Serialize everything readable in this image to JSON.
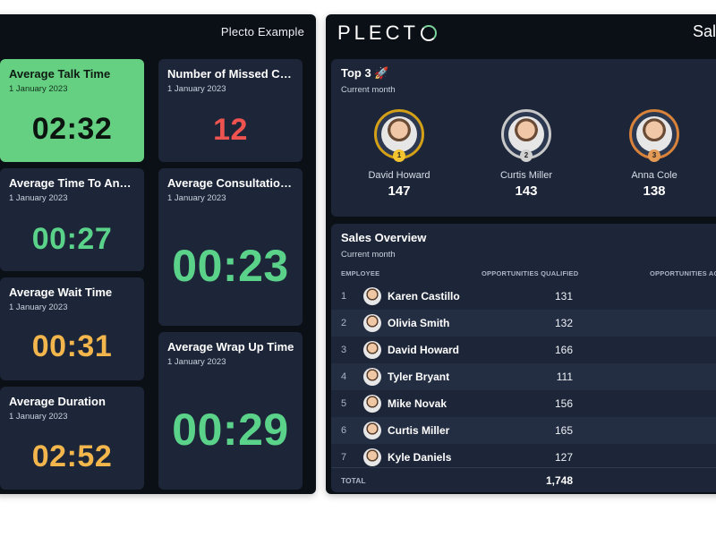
{
  "left_screen": {
    "title": "Plecto Example",
    "tiles": [
      {
        "title": "Average Talk Time",
        "date": "1 January 2023",
        "value": "02:32"
      },
      {
        "title": "Number of Missed Calls",
        "date": "1 January 2023",
        "value": "12"
      },
      {
        "title": "Average Time To Answer",
        "date": "1 January 2023",
        "value": "00:27"
      },
      {
        "title": "Average Consultation ...",
        "date": "1 January 2023",
        "value": "00:23"
      },
      {
        "title": "Average Wait Time",
        "date": "1 January 2023",
        "value": "00:31"
      },
      {
        "title": "Average Wrap Up Time",
        "date": "1 January 2023",
        "value": "00:29"
      },
      {
        "title": "Average Duration",
        "date": "1 January 2023",
        "value": "02:52"
      }
    ],
    "colors": {
      "green": "#5bd28a",
      "orange": "#f2b64c",
      "red": "#ef5350",
      "highlight_bg": "#65cf82"
    }
  },
  "right_screen": {
    "logo": "PLECT",
    "title": "Sal",
    "top3": {
      "title": "Top 3 🚀",
      "subtitle": "Current month",
      "people": [
        {
          "name": "David Howard",
          "score": "147",
          "rank": "1"
        },
        {
          "name": "Curtis Miller",
          "score": "143",
          "rank": "2"
        },
        {
          "name": "Anna Cole",
          "score": "138",
          "rank": "3"
        }
      ]
    },
    "sales_overview": {
      "title": "Sales Overview",
      "subtitle": "Current month",
      "columns": [
        "EMPLOYEE",
        "OPPORTUNITIES QUALIFIED",
        "OPPORTUNITIES AC"
      ],
      "rows": [
        {
          "rank": "1",
          "name": "Karen Castillo",
          "qualified": "131"
        },
        {
          "rank": "2",
          "name": "Olivia Smith",
          "qualified": "132"
        },
        {
          "rank": "3",
          "name": "David Howard",
          "qualified": "166"
        },
        {
          "rank": "4",
          "name": "Tyler Bryant",
          "qualified": "111"
        },
        {
          "rank": "5",
          "name": "Mike Novak",
          "qualified": "156"
        },
        {
          "rank": "6",
          "name": "Curtis Miller",
          "qualified": "165"
        },
        {
          "rank": "7",
          "name": "Kyle Daniels",
          "qualified": "127"
        }
      ],
      "total_label": "TOTAL",
      "total_value": "1,748"
    }
  }
}
